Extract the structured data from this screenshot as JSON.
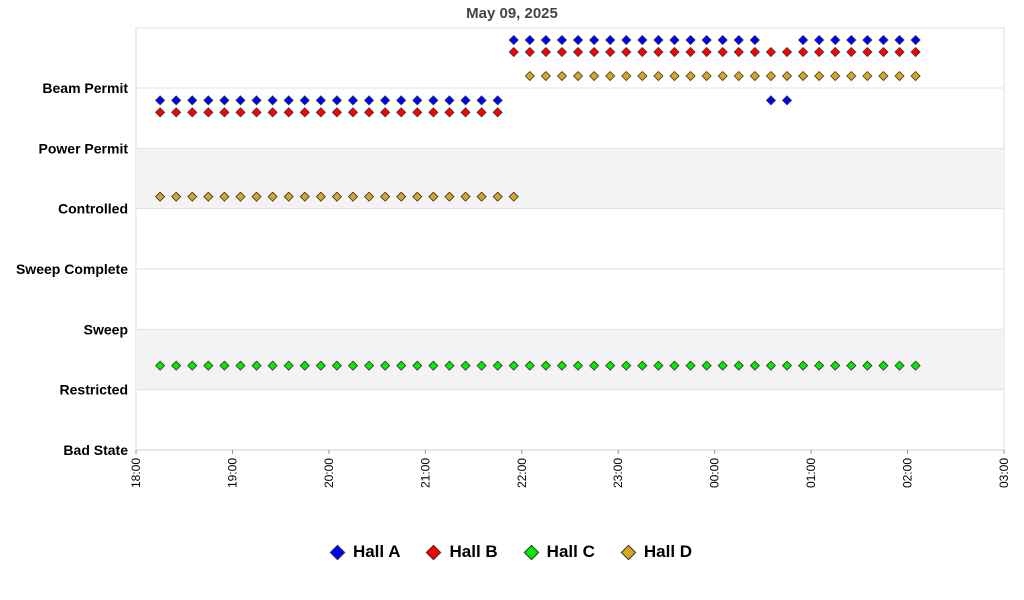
{
  "chart_data": {
    "type": "scatter",
    "title": "May 09, 2025",
    "y_categories": [
      "Bad State",
      "Restricted",
      "Sweep",
      "Sweep Complete",
      "Controlled",
      "Power Permit",
      "Beam Permit"
    ],
    "x_ticks": [
      "18:00",
      "19:00",
      "20:00",
      "21:00",
      "22:00",
      "23:00",
      "00:00",
      "01:00",
      "02:00",
      "03:00"
    ],
    "xlim": [
      "18:00",
      "03:00"
    ],
    "x_step_minutes": 10,
    "legend_position": "bottom",
    "series": [
      {
        "name": "Hall A",
        "color": "#0000ff",
        "segments": [
          {
            "state": "Power Permit",
            "start": "18:15",
            "end": "21:45"
          },
          {
            "state": "Beam Permit",
            "start": "21:55",
            "end": "00:15"
          },
          {
            "state": "Beam Permit",
            "start": "00:25",
            "end": "00:25"
          },
          {
            "state": "Power Permit",
            "start": "00:35",
            "end": "00:45"
          },
          {
            "state": "Beam Permit",
            "start": "00:55",
            "end": "00:55"
          },
          {
            "state": "Beam Permit",
            "start": "01:05",
            "end": "02:05"
          }
        ]
      },
      {
        "name": "Hall B",
        "color": "#ff0000",
        "segments": [
          {
            "state": "Power Permit",
            "start": "18:15",
            "end": "21:45"
          },
          {
            "state": "Beam Permit",
            "start": "21:55",
            "end": "02:05"
          }
        ]
      },
      {
        "name": "Hall C",
        "color": "#00ee00",
        "segments": [
          {
            "state": "Restricted",
            "start": "18:15",
            "end": "02:05"
          }
        ]
      },
      {
        "name": "Hall D",
        "color": "#daa520",
        "segments": [
          {
            "state": "Controlled",
            "start": "18:15",
            "end": "21:55"
          },
          {
            "state": "Beam Permit",
            "start": "22:05",
            "end": "02:05"
          }
        ]
      }
    ]
  }
}
